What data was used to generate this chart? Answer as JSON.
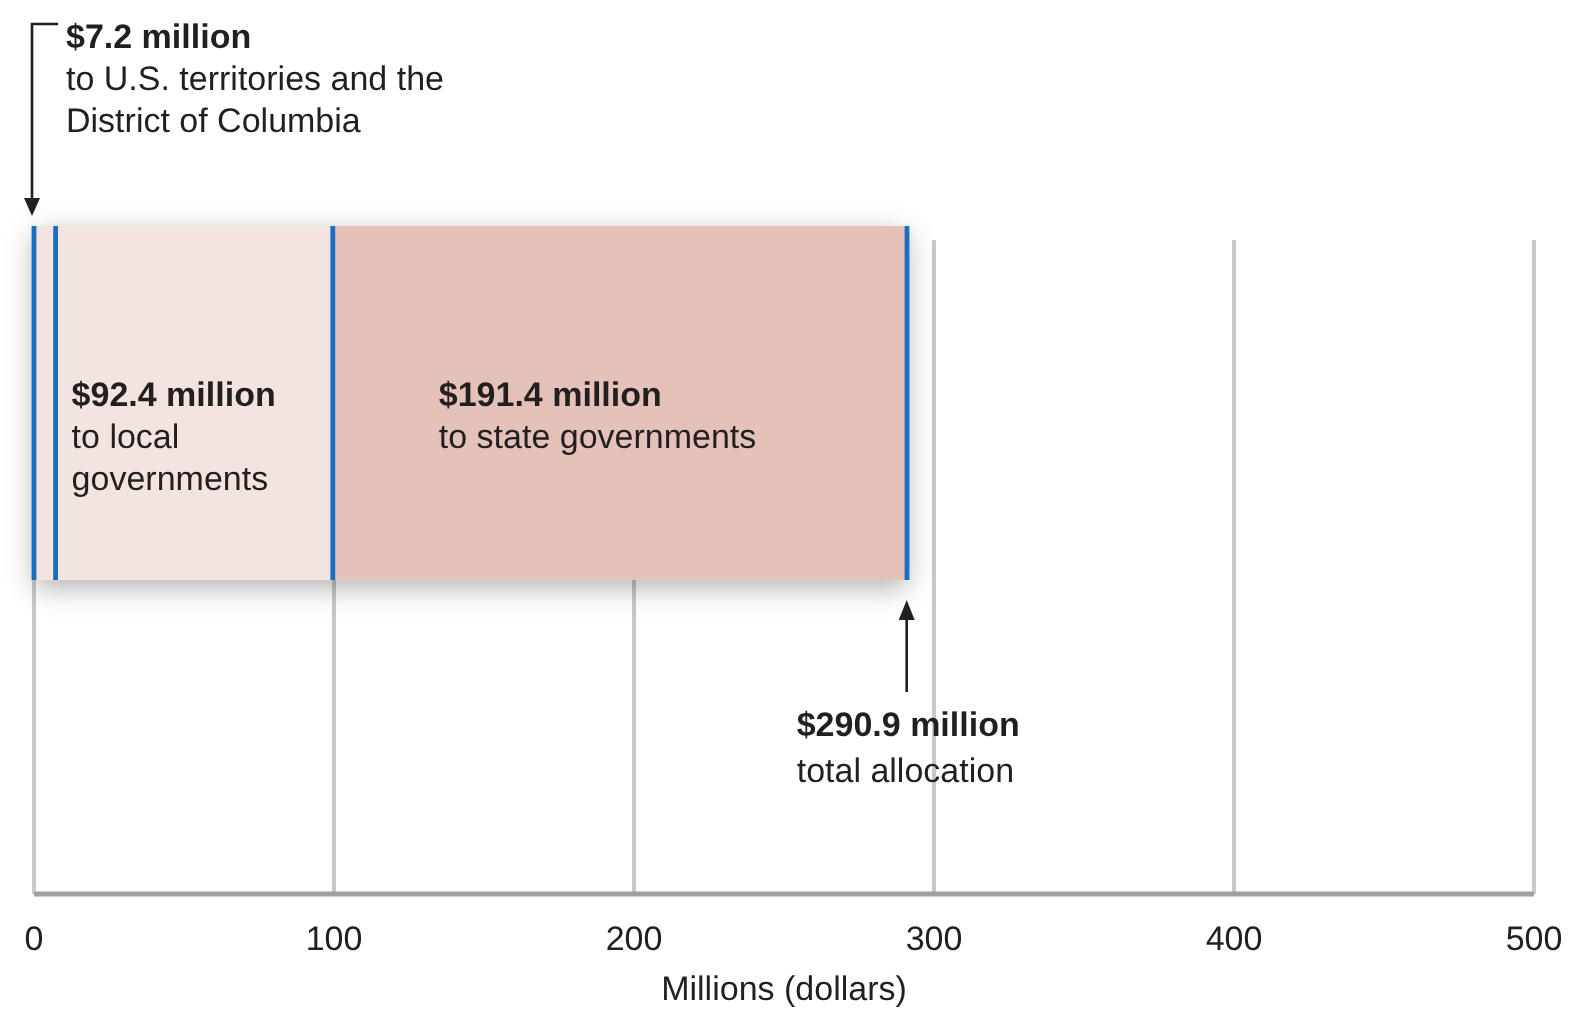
{
  "chart_data": {
    "type": "bar",
    "orientation": "horizontal",
    "stacked": true,
    "categories": [
      null
    ],
    "series": [
      {
        "color": "#f4e4e0",
        "values": [
          7.2
        ]
      },
      {
        "name": "to local governments",
        "color": "#f4e4e0",
        "values": [
          92.4
        ],
        "value_labels": [
          "$92.4 million"
        ]
      },
      {
        "name": "to state governments",
        "color": "#e4c2ba",
        "values": [
          191.4
        ],
        "value_labels": [
          "$191.4 million"
        ]
      }
    ],
    "xlim": [
      0,
      500
    ],
    "xticks": [
      0,
      100,
      200,
      300,
      400,
      500
    ],
    "xlabel": "Millions (dollars)",
    "grid": "x",
    "annotations": [
      "$7.2 million\nto U.S. territories and the\nDistrict of Columbia",
      {
        "text": "$290.9 million\ntotal allocation",
        "x": 290.9
      }
    ]
  }
}
